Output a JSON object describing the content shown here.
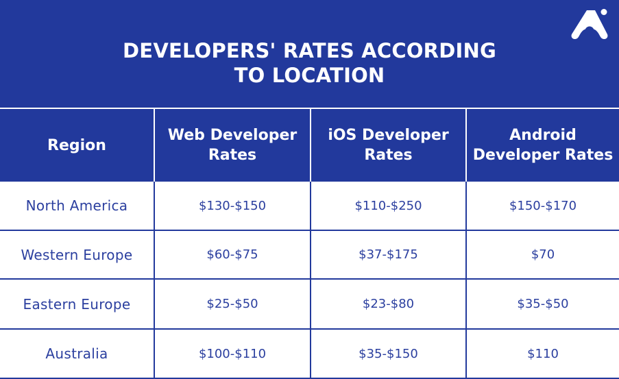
{
  "header": {
    "title_line1": "DEVELOPERS' RATES ACCORDING",
    "title_line2": "TO LOCATION",
    "logo_icon": "brand-logo-icon"
  },
  "colors": {
    "header_bg": "#22399c",
    "header_text": "#ffffff",
    "cell_text": "#2b3f9f",
    "grid_line": "#22399c"
  },
  "chart_data": {
    "type": "table",
    "title": "DEVELOPERS' RATES ACCORDING TO LOCATION",
    "columns": [
      "Region",
      "Web Developer Rates",
      "iOS Developer Rates",
      "Android Developer Rates"
    ],
    "rows": [
      [
        "North America",
        "$130-$150",
        "$110-$250",
        "$150-$170"
      ],
      [
        "Western Europe",
        "$60-$75",
        "$37-$175",
        "$70"
      ],
      [
        "Eastern Europe",
        "$25-$50",
        "$23-$80",
        "$35-$50"
      ],
      [
        "Australia",
        "$100-$110",
        "$35-$150",
        "$110"
      ]
    ]
  }
}
